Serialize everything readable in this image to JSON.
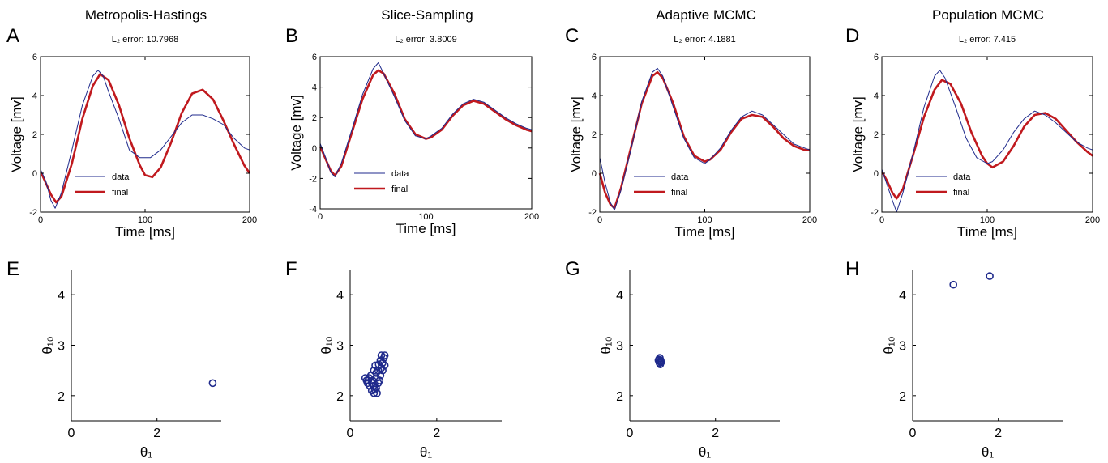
{
  "colors": {
    "data": "#1f2a8c",
    "final": "#c0191e",
    "axis": "#000000"
  },
  "chart_data": [
    {
      "panel": "A",
      "type": "line",
      "title": "Metropolis-Hastings",
      "error_label": "L₂ error: 10.7968",
      "xlabel": "Time [ms]",
      "ylabel": "Voltage [mv]",
      "xlim": [
        0,
        200
      ],
      "ylim": [
        -2,
        6
      ],
      "xticks": [
        0,
        100,
        200
      ],
      "yticks": [
        -2,
        0,
        2,
        4,
        6
      ],
      "legend": [
        "data",
        "final"
      ],
      "legend_position": "lower-left",
      "series": [
        {
          "name": "final",
          "x": [
            0,
            5,
            10,
            15,
            20,
            30,
            40,
            50,
            57,
            65,
            75,
            85,
            95,
            100,
            107,
            115,
            125,
            135,
            145,
            155,
            165,
            175,
            185,
            195,
            200
          ],
          "y": [
            0.1,
            -0.5,
            -1.1,
            -1.5,
            -1.2,
            0.5,
            2.8,
            4.5,
            5.1,
            4.8,
            3.5,
            1.8,
            0.4,
            -0.1,
            -0.2,
            0.3,
            1.6,
            3.1,
            4.1,
            4.3,
            3.8,
            2.7,
            1.5,
            0.4,
            0.0
          ]
        },
        {
          "name": "data",
          "x": [
            0,
            5,
            10,
            14,
            20,
            30,
            40,
            50,
            55,
            60,
            65,
            75,
            85,
            95,
            105,
            115,
            125,
            135,
            145,
            155,
            165,
            175,
            185,
            195,
            200
          ],
          "y": [
            0.2,
            -0.4,
            -1.4,
            -1.8,
            -1.0,
            1.2,
            3.5,
            5.0,
            5.3,
            5.0,
            4.2,
            2.8,
            1.2,
            0.8,
            0.8,
            1.2,
            1.9,
            2.6,
            3.0,
            3.0,
            2.8,
            2.5,
            1.8,
            1.3,
            1.2
          ]
        }
      ]
    },
    {
      "panel": "B",
      "type": "line",
      "title": "Slice-Sampling",
      "error_label": "L₂ error: 3.8009",
      "xlabel": "Time [ms]",
      "ylabel": "Voltage [mv]",
      "xlim": [
        0,
        200
      ],
      "ylim": [
        -4,
        6
      ],
      "xticks": [
        0,
        100,
        200
      ],
      "yticks": [
        -4,
        -2,
        0,
        2,
        4,
        6
      ],
      "legend": [
        "data",
        "final"
      ],
      "legend_position": "lower-left",
      "series": [
        {
          "name": "final",
          "x": [
            0,
            5,
            10,
            14,
            20,
            30,
            40,
            50,
            55,
            60,
            70,
            80,
            90,
            100,
            105,
            115,
            125,
            135,
            145,
            155,
            165,
            175,
            185,
            195,
            200
          ],
          "y": [
            0.1,
            -0.7,
            -1.5,
            -1.8,
            -1.2,
            1.0,
            3.2,
            4.8,
            5.1,
            4.9,
            3.6,
            1.9,
            0.9,
            0.6,
            0.7,
            1.2,
            2.1,
            2.8,
            3.1,
            2.9,
            2.4,
            1.9,
            1.5,
            1.2,
            1.1
          ]
        },
        {
          "name": "data",
          "x": [
            0,
            5,
            10,
            14,
            20,
            30,
            40,
            50,
            55,
            60,
            70,
            80,
            90,
            100,
            105,
            115,
            125,
            135,
            145,
            155,
            165,
            175,
            185,
            195,
            200
          ],
          "y": [
            0.3,
            -0.6,
            -1.6,
            -1.9,
            -1.0,
            1.2,
            3.5,
            5.2,
            5.6,
            4.9,
            3.4,
            1.8,
            0.8,
            0.6,
            0.8,
            1.3,
            2.2,
            2.9,
            3.2,
            3.0,
            2.5,
            2.0,
            1.6,
            1.3,
            1.2
          ]
        }
      ]
    },
    {
      "panel": "C",
      "type": "line",
      "title": "Adaptive MCMC",
      "error_label": "L₂ error: 4.1881",
      "xlabel": "Time [ms]",
      "ylabel": "Voltage [mv]",
      "xlim": [
        0,
        200
      ],
      "ylim": [
        -2,
        6
      ],
      "xticks": [
        0,
        100,
        200
      ],
      "yticks": [
        -2,
        0,
        2,
        4,
        6
      ],
      "legend": [
        "data",
        "final"
      ],
      "legend_position": "lower-left",
      "series": [
        {
          "name": "final",
          "x": [
            0,
            5,
            10,
            14,
            20,
            30,
            40,
            50,
            55,
            60,
            70,
            80,
            90,
            100,
            105,
            115,
            125,
            135,
            145,
            155,
            165,
            175,
            185,
            195,
            200
          ],
          "y": [
            0.0,
            -1.0,
            -1.6,
            -1.8,
            -0.8,
            1.4,
            3.6,
            5.0,
            5.2,
            4.9,
            3.6,
            1.9,
            0.9,
            0.6,
            0.7,
            1.2,
            2.1,
            2.8,
            3.0,
            2.9,
            2.4,
            1.8,
            1.4,
            1.2,
            1.2
          ]
        },
        {
          "name": "data",
          "x": [
            0,
            5,
            10,
            14,
            20,
            30,
            40,
            50,
            55,
            60,
            70,
            80,
            90,
            100,
            105,
            115,
            125,
            135,
            145,
            155,
            165,
            175,
            185,
            195,
            200
          ],
          "y": [
            0.8,
            -0.5,
            -1.5,
            -1.9,
            -0.9,
            1.3,
            3.7,
            5.2,
            5.4,
            5.0,
            3.4,
            1.8,
            0.8,
            0.5,
            0.7,
            1.3,
            2.2,
            2.9,
            3.2,
            3.0,
            2.5,
            2.0,
            1.5,
            1.3,
            1.2
          ]
        }
      ]
    },
    {
      "panel": "D",
      "type": "line",
      "title": "Population MCMC",
      "error_label": "L₂ error: 7.415",
      "xlabel": "Time [ms]",
      "ylabel": "Voltage [mv]",
      "xlim": [
        0,
        200
      ],
      "ylim": [
        -2,
        6
      ],
      "xticks": [
        0,
        100,
        200
      ],
      "yticks": [
        -2,
        0,
        2,
        4,
        6
      ],
      "legend": [
        "data",
        "final"
      ],
      "legend_position": "lower-left",
      "series": [
        {
          "name": "final",
          "x": [
            0,
            5,
            10,
            14,
            20,
            30,
            40,
            50,
            57,
            65,
            75,
            85,
            95,
            100,
            105,
            115,
            125,
            135,
            145,
            155,
            165,
            175,
            185,
            195,
            200
          ],
          "y": [
            0.1,
            -0.4,
            -1.0,
            -1.3,
            -0.8,
            1.0,
            2.9,
            4.3,
            4.8,
            4.6,
            3.6,
            2.1,
            0.9,
            0.5,
            0.3,
            0.6,
            1.4,
            2.4,
            3.0,
            3.1,
            2.8,
            2.2,
            1.6,
            1.1,
            0.9
          ]
        },
        {
          "name": "data",
          "x": [
            0,
            5,
            10,
            14,
            20,
            30,
            40,
            50,
            55,
            60,
            70,
            80,
            90,
            100,
            105,
            115,
            125,
            135,
            145,
            155,
            165,
            175,
            185,
            195,
            200
          ],
          "y": [
            0.2,
            -0.6,
            -1.4,
            -2.0,
            -1.0,
            1.1,
            3.4,
            5.0,
            5.3,
            4.9,
            3.4,
            1.8,
            0.8,
            0.5,
            0.6,
            1.2,
            2.1,
            2.8,
            3.2,
            3.0,
            2.6,
            2.1,
            1.6,
            1.3,
            1.2
          ]
        }
      ]
    },
    {
      "panel": "E",
      "type": "scatter",
      "xlabel": "θ₁",
      "ylabel": "θ₁₀",
      "xlim": [
        0,
        3.5
      ],
      "ylim": [
        1.5,
        4.5
      ],
      "xticks": [
        0,
        2
      ],
      "yticks": [
        2,
        3,
        4
      ],
      "points": [
        [
          3.3,
          2.25
        ]
      ]
    },
    {
      "panel": "F",
      "type": "scatter",
      "xlabel": "θ₁",
      "ylabel": "θ₁₀",
      "xlim": [
        0,
        3.5
      ],
      "ylim": [
        1.5,
        4.5
      ],
      "xticks": [
        0,
        2
      ],
      "yticks": [
        2,
        3,
        4
      ],
      "points": [
        [
          0.35,
          2.35
        ],
        [
          0.42,
          2.3
        ],
        [
          0.5,
          2.25
        ],
        [
          0.55,
          2.2
        ],
        [
          0.6,
          2.35
        ],
        [
          0.5,
          2.1
        ],
        [
          0.55,
          2.05
        ],
        [
          0.6,
          2.15
        ],
        [
          0.65,
          2.25
        ],
        [
          0.7,
          2.4
        ],
        [
          0.72,
          2.55
        ],
        [
          0.75,
          2.65
        ],
        [
          0.78,
          2.75
        ],
        [
          0.7,
          2.7
        ],
        [
          0.65,
          2.5
        ],
        [
          0.6,
          2.45
        ],
        [
          0.55,
          2.5
        ],
        [
          0.48,
          2.4
        ],
        [
          0.4,
          2.25
        ],
        [
          0.45,
          2.2
        ],
        [
          0.62,
          2.05
        ],
        [
          0.68,
          2.3
        ],
        [
          0.75,
          2.5
        ],
        [
          0.8,
          2.6
        ],
        [
          0.58,
          2.6
        ],
        [
          0.52,
          2.3
        ],
        [
          0.44,
          2.35
        ],
        [
          0.66,
          2.62
        ],
        [
          0.72,
          2.8
        ],
        [
          0.8,
          2.8
        ],
        [
          0.38,
          2.3
        ],
        [
          0.57,
          2.12
        ]
      ]
    },
    {
      "panel": "G",
      "type": "scatter",
      "xlabel": "θ₁",
      "ylabel": "θ₁₀",
      "xlim": [
        0,
        3.5
      ],
      "ylim": [
        1.5,
        4.5
      ],
      "xticks": [
        0,
        2
      ],
      "yticks": [
        2,
        3,
        4
      ],
      "points": [
        [
          0.68,
          2.72
        ],
        [
          0.7,
          2.68
        ],
        [
          0.72,
          2.7
        ],
        [
          0.7,
          2.75
        ],
        [
          0.69,
          2.65
        ],
        [
          0.73,
          2.66
        ],
        [
          0.67,
          2.7
        ],
        [
          0.71,
          2.62
        ]
      ]
    },
    {
      "panel": "H",
      "type": "scatter",
      "xlabel": "θ₁",
      "ylabel": "θ₁₀",
      "xlim": [
        0,
        3.5
      ],
      "ylim": [
        1.5,
        4.5
      ],
      "xticks": [
        0,
        2
      ],
      "yticks": [
        2,
        3,
        4
      ],
      "points": [
        [
          0.95,
          4.2
        ],
        [
          1.8,
          4.37
        ]
      ]
    }
  ]
}
